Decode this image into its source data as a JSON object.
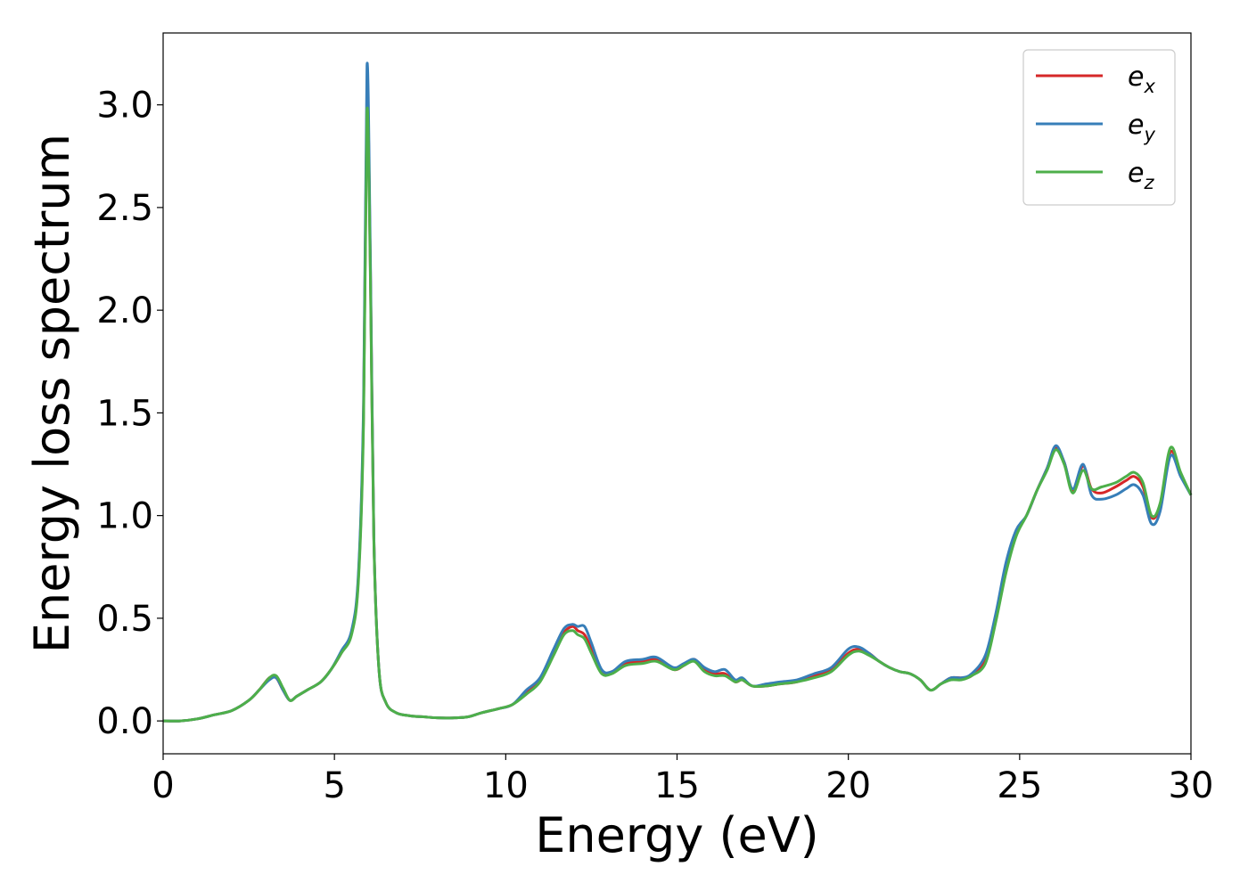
{
  "chart_data": {
    "type": "line",
    "xlabel": "Energy (eV)",
    "ylabel": "Energy loss spectrum",
    "xlim": [
      0,
      30
    ],
    "ylim": [
      -0.16,
      3.35
    ],
    "xticks": [
      0,
      5,
      10,
      15,
      20,
      25,
      30
    ],
    "xtick_labels": [
      "0",
      "5",
      "10",
      "15",
      "20",
      "25",
      "30"
    ],
    "yticks": [
      0.0,
      0.5,
      1.0,
      1.5,
      2.0,
      2.5,
      3.0
    ],
    "ytick_labels": [
      "0.0",
      "0.5",
      "1.0",
      "1.5",
      "2.0",
      "2.5",
      "3.0"
    ],
    "grid": false,
    "legend_position": "top-right",
    "x": [
      0,
      0.5,
      1.0,
      1.5,
      2.0,
      2.5,
      2.8,
      3.1,
      3.3,
      3.5,
      3.7,
      3.9,
      4.2,
      4.6,
      4.9,
      5.2,
      5.5,
      5.7,
      5.85,
      5.95,
      6.05,
      6.15,
      6.3,
      6.5,
      6.8,
      7.2,
      7.6,
      8.0,
      8.5,
      8.9,
      9.3,
      9.8,
      10.2,
      10.6,
      11.0,
      11.4,
      11.7,
      11.95,
      12.1,
      12.3,
      12.5,
      12.8,
      13.1,
      13.5,
      14.0,
      14.4,
      14.9,
      15.2,
      15.5,
      15.8,
      16.1,
      16.4,
      16.7,
      16.9,
      17.2,
      17.6,
      18.0,
      18.5,
      19.0,
      19.5,
      20.0,
      20.3,
      20.6,
      20.9,
      21.2,
      21.5,
      21.8,
      22.1,
      22.4,
      22.7,
      23.0,
      23.3,
      23.6,
      24.0,
      24.3,
      24.6,
      24.9,
      25.2,
      25.5,
      25.8,
      26.05,
      26.3,
      26.55,
      26.85,
      27.1,
      27.4,
      27.8,
      28.1,
      28.35,
      28.6,
      28.85,
      29.1,
      29.4,
      29.7,
      30.0
    ],
    "series": [
      {
        "name": "e_x",
        "color": "#d62728",
        "values": [
          0.0,
          0.0,
          0.01,
          0.03,
          0.05,
          0.1,
          0.15,
          0.21,
          0.21,
          0.15,
          0.1,
          0.12,
          0.15,
          0.19,
          0.25,
          0.33,
          0.43,
          0.7,
          1.5,
          3.05,
          2.2,
          0.9,
          0.25,
          0.09,
          0.04,
          0.025,
          0.02,
          0.015,
          0.015,
          0.02,
          0.04,
          0.06,
          0.08,
          0.14,
          0.2,
          0.33,
          0.43,
          0.46,
          0.44,
          0.42,
          0.35,
          0.24,
          0.24,
          0.28,
          0.29,
          0.3,
          0.25,
          0.27,
          0.3,
          0.25,
          0.23,
          0.23,
          0.19,
          0.2,
          0.17,
          0.17,
          0.18,
          0.19,
          0.22,
          0.25,
          0.33,
          0.35,
          0.33,
          0.29,
          0.26,
          0.24,
          0.23,
          0.2,
          0.15,
          0.18,
          0.21,
          0.21,
          0.22,
          0.3,
          0.5,
          0.75,
          0.92,
          1.0,
          1.12,
          1.23,
          1.33,
          1.26,
          1.12,
          1.24,
          1.13,
          1.11,
          1.14,
          1.17,
          1.19,
          1.14,
          0.99,
          1.05,
          1.31,
          1.2,
          1.1
        ]
      },
      {
        "name": "e_y",
        "color": "#377eb8",
        "values": [
          0.0,
          0.0,
          0.01,
          0.03,
          0.05,
          0.1,
          0.15,
          0.2,
          0.21,
          0.15,
          0.1,
          0.12,
          0.15,
          0.19,
          0.25,
          0.34,
          0.44,
          0.72,
          1.55,
          3.19,
          2.25,
          0.9,
          0.25,
          0.09,
          0.04,
          0.025,
          0.02,
          0.015,
          0.015,
          0.02,
          0.04,
          0.06,
          0.08,
          0.15,
          0.21,
          0.35,
          0.45,
          0.47,
          0.46,
          0.46,
          0.38,
          0.25,
          0.24,
          0.29,
          0.3,
          0.31,
          0.26,
          0.28,
          0.3,
          0.26,
          0.24,
          0.25,
          0.2,
          0.21,
          0.17,
          0.18,
          0.19,
          0.2,
          0.23,
          0.26,
          0.35,
          0.36,
          0.33,
          0.29,
          0.26,
          0.24,
          0.23,
          0.2,
          0.15,
          0.18,
          0.21,
          0.21,
          0.23,
          0.32,
          0.52,
          0.77,
          0.93,
          1.0,
          1.12,
          1.23,
          1.34,
          1.26,
          1.13,
          1.25,
          1.1,
          1.08,
          1.1,
          1.13,
          1.15,
          1.1,
          0.96,
          1.02,
          1.29,
          1.19,
          1.1
        ]
      },
      {
        "name": "e_z",
        "color": "#4daf4a",
        "values": [
          0.0,
          0.0,
          0.01,
          0.03,
          0.05,
          0.1,
          0.15,
          0.21,
          0.22,
          0.16,
          0.1,
          0.12,
          0.15,
          0.19,
          0.25,
          0.33,
          0.42,
          0.68,
          1.45,
          2.97,
          2.15,
          0.88,
          0.25,
          0.09,
          0.04,
          0.025,
          0.02,
          0.015,
          0.015,
          0.02,
          0.04,
          0.06,
          0.08,
          0.13,
          0.19,
          0.32,
          0.42,
          0.44,
          0.42,
          0.4,
          0.33,
          0.23,
          0.23,
          0.27,
          0.28,
          0.29,
          0.25,
          0.27,
          0.29,
          0.24,
          0.22,
          0.22,
          0.19,
          0.2,
          0.17,
          0.17,
          0.18,
          0.19,
          0.21,
          0.24,
          0.32,
          0.34,
          0.32,
          0.29,
          0.26,
          0.24,
          0.23,
          0.2,
          0.15,
          0.18,
          0.2,
          0.2,
          0.22,
          0.28,
          0.48,
          0.72,
          0.9,
          1.0,
          1.12,
          1.22,
          1.32,
          1.25,
          1.11,
          1.22,
          1.13,
          1.14,
          1.16,
          1.19,
          1.21,
          1.16,
          1.0,
          1.06,
          1.33,
          1.21,
          1.1
        ]
      }
    ],
    "legend": [
      {
        "base": "e",
        "sub": "x",
        "color": "#d62728"
      },
      {
        "base": "e",
        "sub": "y",
        "color": "#377eb8"
      },
      {
        "base": "e",
        "sub": "z",
        "color": "#4daf4a"
      }
    ]
  }
}
